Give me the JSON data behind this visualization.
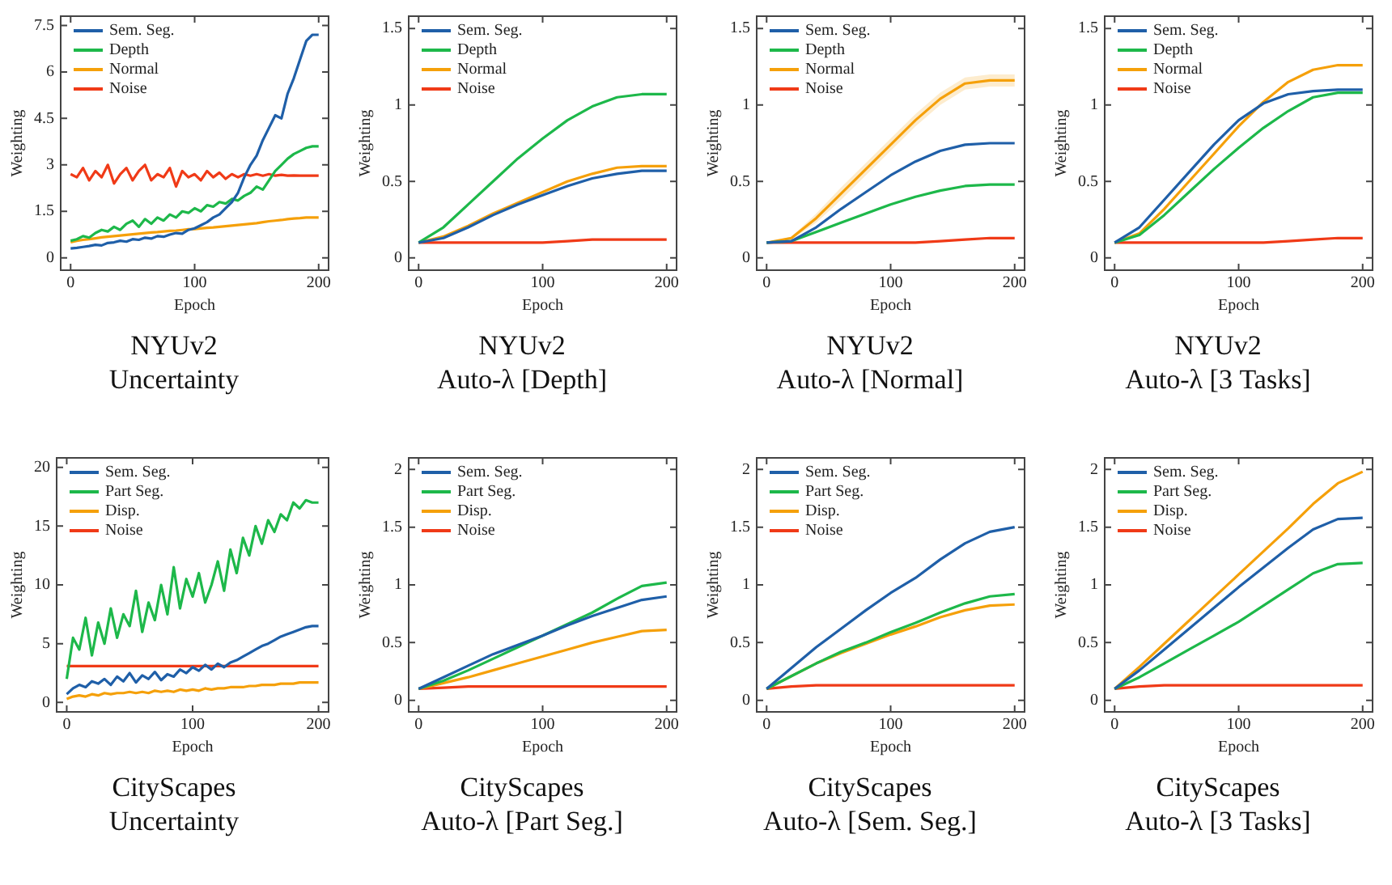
{
  "chart_data": [
    {
      "type": "line",
      "title": "NYUv2",
      "subtitle": "Uncertainty",
      "xlabel": "Epoch",
      "ylabel": "Weighting",
      "legend": "top left",
      "grid": false,
      "xlim": [
        -8,
        208
      ],
      "xticks": [
        0,
        100,
        200
      ],
      "ylim": [
        -0.4,
        7.8
      ],
      "yticks": [
        0,
        1.5,
        3,
        4.5,
        6,
        7.5
      ],
      "x": [
        0,
        5,
        10,
        15,
        20,
        25,
        30,
        35,
        40,
        45,
        50,
        55,
        60,
        65,
        70,
        75,
        80,
        85,
        90,
        95,
        100,
        105,
        110,
        115,
        120,
        125,
        130,
        135,
        140,
        145,
        150,
        155,
        160,
        165,
        170,
        175,
        180,
        185,
        190,
        195,
        200
      ],
      "series": [
        {
          "name": "Sem. Seg.",
          "color": "#1f5fa8",
          "values": [
            0.3,
            0.32,
            0.35,
            0.38,
            0.42,
            0.4,
            0.48,
            0.5,
            0.55,
            0.52,
            0.6,
            0.58,
            0.65,
            0.62,
            0.7,
            0.68,
            0.75,
            0.8,
            0.78,
            0.9,
            0.95,
            1.05,
            1.15,
            1.3,
            1.4,
            1.6,
            1.8,
            2.1,
            2.6,
            3.0,
            3.3,
            3.8,
            4.2,
            4.6,
            4.5,
            5.3,
            5.8,
            6.4,
            7.0,
            7.2,
            7.2
          ]
        },
        {
          "name": "Depth",
          "color": "#1db84a",
          "values": [
            0.55,
            0.6,
            0.7,
            0.65,
            0.8,
            0.9,
            0.85,
            1.0,
            0.9,
            1.1,
            1.2,
            1.0,
            1.25,
            1.1,
            1.3,
            1.2,
            1.4,
            1.3,
            1.5,
            1.45,
            1.6,
            1.5,
            1.7,
            1.65,
            1.8,
            1.75,
            1.9,
            1.85,
            2.0,
            2.1,
            2.3,
            2.2,
            2.5,
            2.8,
            3.0,
            3.2,
            3.35,
            3.45,
            3.55,
            3.6,
            3.6
          ]
        },
        {
          "name": "Normal",
          "color": "#f5a00a",
          "values": [
            0.5,
            0.55,
            0.58,
            0.6,
            0.63,
            0.66,
            0.68,
            0.7,
            0.72,
            0.74,
            0.76,
            0.78,
            0.8,
            0.82,
            0.83,
            0.85,
            0.87,
            0.88,
            0.9,
            0.92,
            0.93,
            0.95,
            0.97,
            0.98,
            1.0,
            1.02,
            1.04,
            1.06,
            1.08,
            1.1,
            1.12,
            1.15,
            1.18,
            1.2,
            1.22,
            1.25,
            1.27,
            1.28,
            1.3,
            1.3,
            1.3
          ]
        },
        {
          "name": "Noise",
          "color": "#f03a17",
          "values": [
            2.7,
            2.6,
            2.9,
            2.5,
            2.8,
            2.6,
            3.0,
            2.4,
            2.7,
            2.9,
            2.5,
            2.8,
            3.0,
            2.5,
            2.7,
            2.6,
            2.9,
            2.3,
            2.8,
            2.6,
            2.7,
            2.5,
            2.8,
            2.6,
            2.75,
            2.55,
            2.7,
            2.6,
            2.7,
            2.65,
            2.7,
            2.65,
            2.7,
            2.65,
            2.68,
            2.65,
            2.66,
            2.65,
            2.65,
            2.65,
            2.65
          ]
        }
      ]
    },
    {
      "type": "line",
      "title": "NYUv2",
      "subtitle": "Auto-λ [Depth]",
      "xlabel": "Epoch",
      "ylabel": "Weighting",
      "legend": "top left",
      "grid": false,
      "xlim": [
        -8,
        208
      ],
      "xticks": [
        0,
        100,
        200
      ],
      "ylim": [
        -0.08,
        1.58
      ],
      "yticks": [
        0,
        0.5,
        1,
        1.5
      ],
      "x": [
        0,
        20,
        40,
        60,
        80,
        100,
        120,
        140,
        160,
        180,
        200
      ],
      "series": [
        {
          "name": "Sem. Seg.",
          "color": "#1f5fa8",
          "values": [
            0.1,
            0.13,
            0.2,
            0.28,
            0.35,
            0.41,
            0.47,
            0.52,
            0.55,
            0.57,
            0.57
          ]
        },
        {
          "name": "Depth",
          "color": "#1db84a",
          "values": [
            0.1,
            0.2,
            0.35,
            0.5,
            0.65,
            0.78,
            0.9,
            0.99,
            1.05,
            1.07,
            1.07
          ]
        },
        {
          "name": "Normal",
          "color": "#f5a00a",
          "values": [
            0.1,
            0.14,
            0.21,
            0.29,
            0.36,
            0.43,
            0.5,
            0.55,
            0.59,
            0.6,
            0.6
          ]
        },
        {
          "name": "Noise",
          "color": "#f03a17",
          "values": [
            0.1,
            0.1,
            0.1,
            0.1,
            0.1,
            0.1,
            0.11,
            0.12,
            0.12,
            0.12,
            0.12
          ]
        }
      ]
    },
    {
      "type": "line",
      "title": "NYUv2",
      "subtitle": "Auto-λ [Normal]",
      "xlabel": "Epoch",
      "ylabel": "Weighting",
      "legend": "top left",
      "grid": false,
      "xlim": [
        -8,
        208
      ],
      "xticks": [
        0,
        100,
        200
      ],
      "ylim": [
        -0.08,
        1.58
      ],
      "yticks": [
        0,
        0.5,
        1,
        1.5
      ],
      "x": [
        0,
        20,
        40,
        60,
        80,
        100,
        120,
        140,
        160,
        180,
        200
      ],
      "series": [
        {
          "name": "Sem. Seg.",
          "color": "#1f5fa8",
          "values": [
            0.1,
            0.11,
            0.2,
            0.32,
            0.43,
            0.54,
            0.63,
            0.7,
            0.74,
            0.75,
            0.75
          ]
        },
        {
          "name": "Depth",
          "color": "#1db84a",
          "values": [
            0.1,
            0.11,
            0.17,
            0.23,
            0.29,
            0.35,
            0.4,
            0.44,
            0.47,
            0.48,
            0.48
          ]
        },
        {
          "name": "Normal",
          "color": "#f5a00a",
          "values": [
            0.1,
            0.13,
            0.26,
            0.42,
            0.58,
            0.74,
            0.9,
            1.04,
            1.14,
            1.16,
            1.16
          ],
          "lower": [
            0.1,
            0.12,
            0.23,
            0.38,
            0.54,
            0.7,
            0.86,
            1.0,
            1.1,
            1.12,
            1.12
          ],
          "upper": [
            0.1,
            0.14,
            0.29,
            0.46,
            0.62,
            0.78,
            0.94,
            1.08,
            1.18,
            1.2,
            1.2
          ]
        },
        {
          "name": "Noise",
          "color": "#f03a17",
          "values": [
            0.1,
            0.1,
            0.1,
            0.1,
            0.1,
            0.1,
            0.1,
            0.11,
            0.12,
            0.13,
            0.13
          ]
        }
      ]
    },
    {
      "type": "line",
      "title": "NYUv2",
      "subtitle": "Auto-λ [3 Tasks]",
      "xlabel": "Epoch",
      "ylabel": "Weighting",
      "legend": "top left",
      "grid": false,
      "xlim": [
        -8,
        208
      ],
      "xticks": [
        0,
        100,
        200
      ],
      "ylim": [
        -0.08,
        1.58
      ],
      "yticks": [
        0,
        0.5,
        1,
        1.5
      ],
      "x": [
        0,
        20,
        40,
        60,
        80,
        100,
        120,
        140,
        160,
        180,
        200
      ],
      "series": [
        {
          "name": "Sem. Seg.",
          "color": "#1f5fa8",
          "values": [
            0.1,
            0.2,
            0.38,
            0.56,
            0.74,
            0.9,
            1.01,
            1.07,
            1.09,
            1.1,
            1.1
          ]
        },
        {
          "name": "Depth",
          "color": "#1db84a",
          "values": [
            0.1,
            0.15,
            0.28,
            0.43,
            0.58,
            0.72,
            0.85,
            0.96,
            1.05,
            1.08,
            1.08
          ]
        },
        {
          "name": "Normal",
          "color": "#f5a00a",
          "values": [
            0.1,
            0.16,
            0.32,
            0.5,
            0.68,
            0.86,
            1.02,
            1.15,
            1.23,
            1.26,
            1.26
          ]
        },
        {
          "name": "Noise",
          "color": "#f03a17",
          "values": [
            0.1,
            0.1,
            0.1,
            0.1,
            0.1,
            0.1,
            0.1,
            0.11,
            0.12,
            0.13,
            0.13
          ]
        }
      ]
    },
    {
      "type": "line",
      "title": "CityScapes",
      "subtitle": "Uncertainty",
      "xlabel": "Epoch",
      "ylabel": "Weighting",
      "legend": "top left",
      "grid": false,
      "xlim": [
        -8,
        208
      ],
      "xticks": [
        0,
        100,
        200
      ],
      "ylim": [
        -0.8,
        20.8
      ],
      "yticks": [
        0,
        5,
        10,
        15,
        20
      ],
      "x": [
        0,
        5,
        10,
        15,
        20,
        25,
        30,
        35,
        40,
        45,
        50,
        55,
        60,
        65,
        70,
        75,
        80,
        85,
        90,
        95,
        100,
        105,
        110,
        115,
        120,
        125,
        130,
        135,
        140,
        145,
        150,
        155,
        160,
        165,
        170,
        175,
        180,
        185,
        190,
        195,
        200
      ],
      "series": [
        {
          "name": "Sem. Seg.",
          "color": "#1f5fa8",
          "values": [
            0.7,
            1.2,
            1.5,
            1.3,
            1.8,
            1.6,
            2.0,
            1.5,
            2.2,
            1.8,
            2.5,
            1.7,
            2.3,
            2.0,
            2.6,
            1.9,
            2.4,
            2.2,
            2.8,
            2.5,
            3.0,
            2.7,
            3.2,
            2.8,
            3.3,
            3.0,
            3.4,
            3.6,
            3.9,
            4.2,
            4.5,
            4.8,
            5.0,
            5.3,
            5.6,
            5.8,
            6.0,
            6.2,
            6.4,
            6.5,
            6.5
          ]
        },
        {
          "name": "Part Seg.",
          "color": "#1db84a",
          "values": [
            2.0,
            5.5,
            4.5,
            7.2,
            4.0,
            6.8,
            5.0,
            8.0,
            5.5,
            7.5,
            6.5,
            9.5,
            6.0,
            8.5,
            7.0,
            10.0,
            7.5,
            11.5,
            8.0,
            10.5,
            9.0,
            11.0,
            8.5,
            10.0,
            12.0,
            9.5,
            13.0,
            11.0,
            14.0,
            12.5,
            15.0,
            13.5,
            15.5,
            14.5,
            16.0,
            15.5,
            17.0,
            16.5,
            17.2,
            17.0,
            17.0
          ]
        },
        {
          "name": "Disp.",
          "color": "#f5a00a",
          "values": [
            0.3,
            0.5,
            0.6,
            0.5,
            0.7,
            0.6,
            0.8,
            0.7,
            0.8,
            0.8,
            0.9,
            0.8,
            0.9,
            0.8,
            1.0,
            0.9,
            1.0,
            0.9,
            1.1,
            1.0,
            1.1,
            1.0,
            1.2,
            1.1,
            1.2,
            1.2,
            1.3,
            1.3,
            1.3,
            1.4,
            1.4,
            1.5,
            1.5,
            1.5,
            1.6,
            1.6,
            1.6,
            1.7,
            1.7,
            1.7,
            1.7
          ]
        },
        {
          "name": "Noise",
          "color": "#f03a17",
          "values": [
            3.1,
            3.1,
            3.1,
            3.1,
            3.1,
            3.1,
            3.1,
            3.1,
            3.1,
            3.1,
            3.1,
            3.1,
            3.1,
            3.1,
            3.1,
            3.1,
            3.1,
            3.1,
            3.1,
            3.1,
            3.1,
            3.1,
            3.1,
            3.1,
            3.1,
            3.1,
            3.1,
            3.1,
            3.1,
            3.1,
            3.1,
            3.1,
            3.1,
            3.1,
            3.1,
            3.1,
            3.1,
            3.1,
            3.1,
            3.1,
            3.1
          ]
        }
      ]
    },
    {
      "type": "line",
      "title": "CityScapes",
      "subtitle": "Auto-λ [Part Seg.]",
      "xlabel": "Epoch",
      "ylabel": "Weighting",
      "legend": "top left",
      "grid": false,
      "xlim": [
        -8,
        208
      ],
      "xticks": [
        0,
        100,
        200
      ],
      "ylim": [
        -0.1,
        2.1
      ],
      "yticks": [
        0,
        0.5,
        1,
        1.5,
        2
      ],
      "x": [
        0,
        20,
        40,
        60,
        80,
        100,
        120,
        140,
        160,
        180,
        200
      ],
      "series": [
        {
          "name": "Sem. Seg.",
          "color": "#1f5fa8",
          "values": [
            0.1,
            0.2,
            0.3,
            0.4,
            0.48,
            0.56,
            0.65,
            0.73,
            0.8,
            0.87,
            0.9
          ]
        },
        {
          "name": "Part Seg.",
          "color": "#1db84a",
          "values": [
            0.1,
            0.17,
            0.26,
            0.36,
            0.46,
            0.56,
            0.66,
            0.76,
            0.88,
            0.99,
            1.02
          ]
        },
        {
          "name": "Disp.",
          "color": "#f5a00a",
          "values": [
            0.1,
            0.15,
            0.2,
            0.26,
            0.32,
            0.38,
            0.44,
            0.5,
            0.55,
            0.6,
            0.61
          ]
        },
        {
          "name": "Noise",
          "color": "#f03a17",
          "values": [
            0.1,
            0.11,
            0.12,
            0.12,
            0.12,
            0.12,
            0.12,
            0.12,
            0.12,
            0.12,
            0.12
          ]
        }
      ]
    },
    {
      "type": "line",
      "title": "CityScapes",
      "subtitle": "Auto-λ [Sem. Seg.]",
      "xlabel": "Epoch",
      "ylabel": "Weighting",
      "legend": "top left",
      "grid": false,
      "xlim": [
        -8,
        208
      ],
      "xticks": [
        0,
        100,
        200
      ],
      "ylim": [
        -0.1,
        2.1
      ],
      "yticks": [
        0,
        0.5,
        1,
        1.5,
        2
      ],
      "x": [
        0,
        20,
        40,
        60,
        80,
        100,
        120,
        140,
        160,
        180,
        200
      ],
      "series": [
        {
          "name": "Sem. Seg.",
          "color": "#1f5fa8",
          "values": [
            0.1,
            0.28,
            0.46,
            0.62,
            0.78,
            0.93,
            1.06,
            1.22,
            1.36,
            1.46,
            1.5
          ]
        },
        {
          "name": "Part Seg.",
          "color": "#1db84a",
          "values": [
            0.1,
            0.21,
            0.32,
            0.42,
            0.5,
            0.59,
            0.67,
            0.76,
            0.84,
            0.9,
            0.92
          ]
        },
        {
          "name": "Disp.",
          "color": "#f5a00a",
          "values": [
            0.1,
            0.21,
            0.32,
            0.41,
            0.49,
            0.57,
            0.64,
            0.72,
            0.78,
            0.82,
            0.83
          ]
        },
        {
          "name": "Noise",
          "color": "#f03a17",
          "values": [
            0.1,
            0.12,
            0.13,
            0.13,
            0.13,
            0.13,
            0.13,
            0.13,
            0.13,
            0.13,
            0.13
          ]
        }
      ]
    },
    {
      "type": "line",
      "title": "CityScapes",
      "subtitle": "Auto-λ [3 Tasks]",
      "xlabel": "Epoch",
      "ylabel": "Weighting",
      "legend": "top left",
      "grid": false,
      "xlim": [
        -8,
        208
      ],
      "xticks": [
        0,
        100,
        200
      ],
      "ylim": [
        -0.1,
        2.1
      ],
      "yticks": [
        0,
        0.5,
        1,
        1.5,
        2
      ],
      "x": [
        0,
        20,
        40,
        60,
        80,
        100,
        120,
        140,
        160,
        180,
        200
      ],
      "series": [
        {
          "name": "Sem. Seg.",
          "color": "#1f5fa8",
          "values": [
            0.1,
            0.26,
            0.44,
            0.62,
            0.8,
            0.98,
            1.15,
            1.32,
            1.48,
            1.57,
            1.58
          ]
        },
        {
          "name": "Part Seg.",
          "color": "#1db84a",
          "values": [
            0.1,
            0.2,
            0.32,
            0.44,
            0.56,
            0.68,
            0.82,
            0.96,
            1.1,
            1.18,
            1.19
          ]
        },
        {
          "name": "Disp.",
          "color": "#f5a00a",
          "values": [
            0.1,
            0.29,
            0.49,
            0.69,
            0.89,
            1.09,
            1.29,
            1.49,
            1.7,
            1.88,
            1.98
          ]
        },
        {
          "name": "Noise",
          "color": "#f03a17",
          "values": [
            0.1,
            0.12,
            0.13,
            0.13,
            0.13,
            0.13,
            0.13,
            0.13,
            0.13,
            0.13,
            0.13
          ]
        }
      ]
    }
  ]
}
